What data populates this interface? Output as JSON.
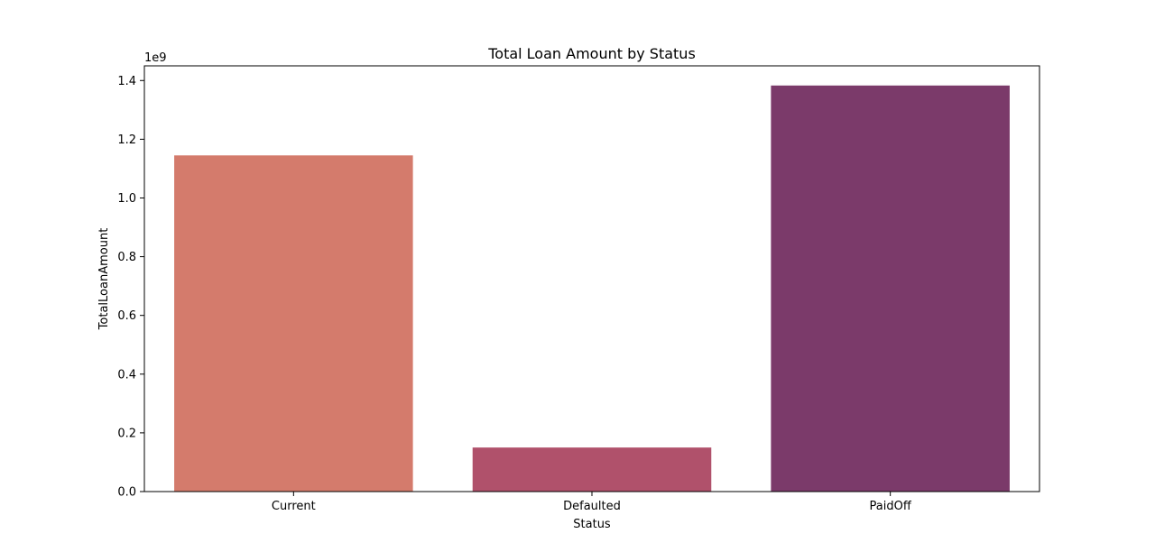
{
  "chart_data": {
    "type": "bar",
    "title": "Total Loan Amount by Status",
    "xlabel": "Status",
    "ylabel": "TotalLoanAmount",
    "y_offset_label": "1e9",
    "categories": [
      "Current",
      "Defaulted",
      "PaidOff"
    ],
    "values": [
      1145000000,
      150000000,
      1383000000
    ],
    "colors": [
      "#d47b6c",
      "#b0516b",
      "#7b3a6a"
    ],
    "ylim": [
      0,
      1450000000
    ],
    "yticks": [
      0,
      0.2,
      0.4,
      0.6,
      0.8,
      1.0,
      1.2,
      1.4
    ],
    "ytick_labels": [
      "0.0",
      "0.2",
      "0.4",
      "0.6",
      "0.8",
      "1.0",
      "1.2",
      "1.4"
    ],
    "ytick_scale": 1000000000,
    "grid": false,
    "legend": "none"
  }
}
